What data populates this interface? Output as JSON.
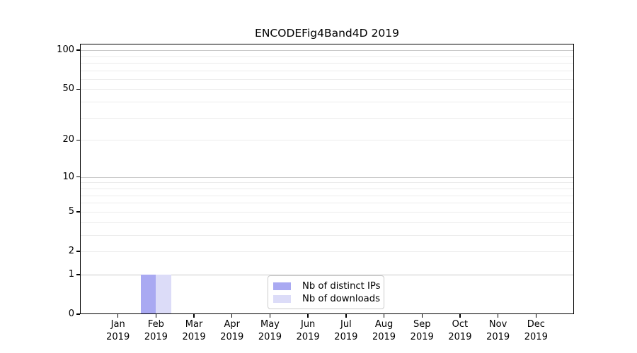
{
  "title": "ENCODEFig4Band4D 2019",
  "chart_data": {
    "type": "bar",
    "title": "ENCODEFig4Band4D 2019",
    "categories": [
      {
        "month": "Jan",
        "year": "2019"
      },
      {
        "month": "Feb",
        "year": "2019"
      },
      {
        "month": "Mar",
        "year": "2019"
      },
      {
        "month": "Apr",
        "year": "2019"
      },
      {
        "month": "May",
        "year": "2019"
      },
      {
        "month": "Jun",
        "year": "2019"
      },
      {
        "month": "Jul",
        "year": "2019"
      },
      {
        "month": "Aug",
        "year": "2019"
      },
      {
        "month": "Sep",
        "year": "2019"
      },
      {
        "month": "Oct",
        "year": "2019"
      },
      {
        "month": "Nov",
        "year": "2019"
      },
      {
        "month": "Dec",
        "year": "2019"
      }
    ],
    "series": [
      {
        "name": "Nb of distinct IPs",
        "color": "#a9a9f2",
        "values": [
          0,
          1,
          0,
          0,
          0,
          0,
          0,
          0,
          0,
          0,
          0,
          0
        ]
      },
      {
        "name": "Nb of downloads",
        "color": "#dcdcf8",
        "values": [
          0,
          1,
          0,
          0,
          0,
          0,
          0,
          0,
          0,
          0,
          0,
          0
        ]
      }
    ],
    "y_axis": {
      "scale": "log1p",
      "ylim": [
        0,
        112
      ],
      "tick_values": [
        100,
        50,
        20,
        10,
        5,
        2,
        1,
        0
      ],
      "tick_labels": [
        "100",
        "50",
        "20",
        "10",
        "5",
        "2",
        "1",
        "0"
      ]
    },
    "x_axis": {
      "xlabel": "",
      "ylabel": ""
    },
    "grid": {
      "on": true,
      "major_values": [
        1,
        10,
        100
      ],
      "minor_values": [
        2,
        3,
        4,
        5,
        6,
        7,
        8,
        9,
        20,
        30,
        40,
        50,
        60,
        70,
        80,
        90
      ],
      "major_color": "#c8c8c8",
      "minor_color": "#ececec"
    },
    "legend": {
      "position": "lower-center",
      "entries": [
        "Nb of distinct IPs",
        "Nb of downloads"
      ]
    }
  }
}
